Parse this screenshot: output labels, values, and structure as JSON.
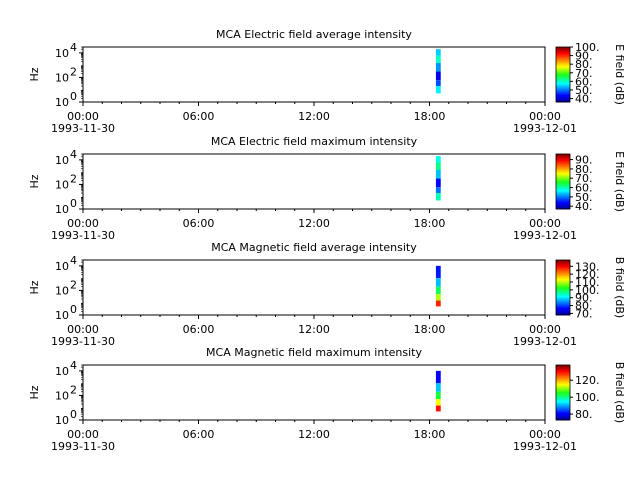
{
  "chart_data": [
    {
      "type": "heatmap",
      "title": "MCA  Electric field average intensity",
      "ylabel": "Hz",
      "yscale": "log",
      "ylim": [
        1,
        30000
      ],
      "y_ticks": [
        {
          "base": "10",
          "exp": "0"
        },
        {
          "base": "10",
          "exp": "2"
        },
        {
          "base": "10",
          "exp": "4"
        }
      ],
      "x_ticks": [
        "00:00",
        "06:00",
        "12:00",
        "18:00",
        "00:00"
      ],
      "x_dates": [
        "1993-11-30",
        "1993-12-01"
      ],
      "xlim": [
        "1993-11-30 00:00",
        "1993-12-01 00:00"
      ],
      "data_time_range": [
        "1993-11-30 18:20",
        "1993-11-30 18:35"
      ],
      "data_freq_range": [
        5,
        20000
      ],
      "colorbar": {
        "label": "E field (dB)",
        "range": [
          36,
          100
        ],
        "ticks": [
          "40.",
          "50.",
          "60.",
          "70.",
          "80.",
          "90.",
          "100."
        ]
      },
      "bands": [
        {
          "f_hi": 20000,
          "f_lo": 6000,
          "value": 55
        },
        {
          "f_hi": 6000,
          "f_lo": 1500,
          "value": 60
        },
        {
          "f_hi": 1500,
          "f_lo": 300,
          "value": 52
        },
        {
          "f_hi": 300,
          "f_lo": 60,
          "value": 42
        },
        {
          "f_hi": 60,
          "f_lo": 20,
          "value": 48
        },
        {
          "f_hi": 20,
          "f_lo": 5,
          "value": 57
        }
      ]
    },
    {
      "type": "heatmap",
      "title": "MCA  Electric field maximum intensity",
      "ylabel": "Hz",
      "yscale": "log",
      "ylim": [
        1,
        30000
      ],
      "y_ticks": [
        {
          "base": "10",
          "exp": "0"
        },
        {
          "base": "10",
          "exp": "2"
        },
        {
          "base": "10",
          "exp": "4"
        }
      ],
      "x_ticks": [
        "00:00",
        "06:00",
        "12:00",
        "18:00",
        "00:00"
      ],
      "x_dates": [
        "1993-11-30",
        "1993-12-01"
      ],
      "xlim": [
        "1993-11-30 00:00",
        "1993-12-01 00:00"
      ],
      "data_time_range": [
        "1993-11-30 18:20",
        "1993-11-30 18:35"
      ],
      "data_freq_range": [
        5,
        20000
      ],
      "colorbar": {
        "label": "E field (dB)",
        "range": [
          37,
          96
        ],
        "ticks": [
          "40.",
          "50.",
          "60.",
          "70.",
          "80.",
          "90."
        ]
      },
      "bands": [
        {
          "f_hi": 20000,
          "f_lo": 6000,
          "value": 58
        },
        {
          "f_hi": 6000,
          "f_lo": 1500,
          "value": 62
        },
        {
          "f_hi": 1500,
          "f_lo": 300,
          "value": 54
        },
        {
          "f_hi": 300,
          "f_lo": 60,
          "value": 44
        },
        {
          "f_hi": 60,
          "f_lo": 20,
          "value": 50
        },
        {
          "f_hi": 20,
          "f_lo": 5,
          "value": 60
        }
      ]
    },
    {
      "type": "heatmap",
      "title": "MCA  Magnetic field average intensity",
      "ylabel": "Hz",
      "yscale": "log",
      "ylim": [
        1,
        30000
      ],
      "y_ticks": [
        {
          "base": "10",
          "exp": "0"
        },
        {
          "base": "10",
          "exp": "2"
        },
        {
          "base": "10",
          "exp": "4"
        }
      ],
      "x_ticks": [
        "00:00",
        "06:00",
        "12:00",
        "18:00",
        "00:00"
      ],
      "x_dates": [
        "1993-11-30",
        "1993-12-01"
      ],
      "xlim": [
        "1993-11-30 00:00",
        "1993-12-01 00:00"
      ],
      "data_time_range": [
        "1993-11-30 18:20",
        "1993-11-30 18:35"
      ],
      "data_freq_range": [
        5,
        10000
      ],
      "colorbar": {
        "label": "B field (dB)",
        "range": [
          68,
          138
        ],
        "ticks": [
          "70.",
          "80.",
          "90.",
          "100.",
          "110.",
          "120.",
          "130."
        ]
      },
      "bands": [
        {
          "f_hi": 10000,
          "f_lo": 1000,
          "value": 78
        },
        {
          "f_hi": 1000,
          "f_lo": 200,
          "value": 88
        },
        {
          "f_hi": 200,
          "f_lo": 50,
          "value": 100
        },
        {
          "f_hi": 50,
          "f_lo": 15,
          "value": 110
        },
        {
          "f_hi": 15,
          "f_lo": 5,
          "value": 128
        }
      ]
    },
    {
      "type": "heatmap",
      "title": "MCA  Magnetic field maximum intensity",
      "ylabel": "Hz",
      "yscale": "log",
      "ylim": [
        1,
        30000
      ],
      "y_ticks": [
        {
          "base": "10",
          "exp": "0"
        },
        {
          "base": "10",
          "exp": "2"
        },
        {
          "base": "10",
          "exp": "4"
        }
      ],
      "x_ticks": [
        "00:00",
        "06:00",
        "12:00",
        "18:00",
        "00:00"
      ],
      "x_dates": [
        "1993-11-30",
        "1993-12-01"
      ],
      "xlim": [
        "1993-11-30 00:00",
        "1993-12-01 00:00"
      ],
      "data_time_range": [
        "1993-11-30 18:20",
        "1993-11-30 18:35"
      ],
      "data_freq_range": [
        5,
        10000
      ],
      "colorbar": {
        "label": "B field (dB)",
        "range": [
          73,
          138
        ],
        "ticks": [
          "80.",
          "100.",
          "120."
        ]
      },
      "bands": [
        {
          "f_hi": 10000,
          "f_lo": 1000,
          "value": 80
        },
        {
          "f_hi": 1000,
          "f_lo": 200,
          "value": 92
        },
        {
          "f_hi": 200,
          "f_lo": 50,
          "value": 104
        },
        {
          "f_hi": 50,
          "f_lo": 15,
          "value": 115
        },
        {
          "f_hi": 15,
          "f_lo": 5,
          "value": 130
        }
      ]
    }
  ]
}
